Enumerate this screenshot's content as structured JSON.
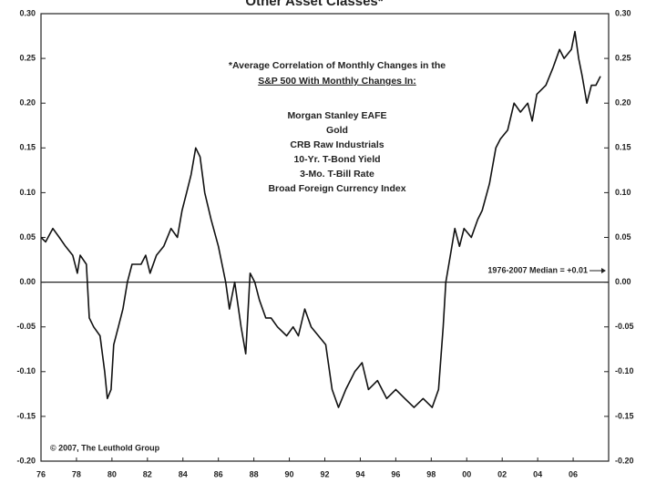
{
  "chart_data": {
    "type": "line",
    "title": "Other Asset Classes*",
    "annotations": {
      "note_lines": [
        "*Average Correlation of Monthly Changes in the",
        "S&P 500 With Monthly Changes In:"
      ],
      "items": [
        "Morgan Stanley EAFE",
        "Gold",
        "CRB Raw Industrials",
        "10-Yr. T-Bond Yield",
        "3-Mo. T-Bill Rate",
        "Broad Foreign Currency Index"
      ],
      "median": "1976-2007 Median = +0.01",
      "copyright": "© 2007, The Leuthold Group"
    },
    "x": [
      1976.0,
      1976.26,
      1976.67,
      1977.03,
      1977.38,
      1977.79,
      1978.05,
      1978.21,
      1978.56,
      1978.72,
      1978.97,
      1979.33,
      1979.59,
      1979.74,
      1979.95,
      1980.1,
      1980.36,
      1980.62,
      1980.87,
      1981.13,
      1981.64,
      1981.9,
      1982.15,
      1982.51,
      1982.92,
      1983.33,
      1983.69,
      1983.95,
      1984.21,
      1984.46,
      1984.72,
      1984.97,
      1985.23,
      1985.59,
      1986.0,
      1986.41,
      1986.62,
      1986.92,
      1987.28,
      1987.54,
      1987.79,
      1988.05,
      1988.31,
      1988.67,
      1988.97,
      1989.33,
      1989.85,
      1990.21,
      1990.51,
      1990.87,
      1991.23,
      1991.64,
      1992.05,
      1992.41,
      1992.77,
      1993.18,
      1993.69,
      1994.1,
      1994.46,
      1994.97,
      1995.49,
      1996.0,
      1996.51,
      1997.03,
      1997.54,
      1998.05,
      1998.41,
      1998.67,
      1998.82,
      1999.08,
      1999.33,
      1999.59,
      1999.85,
      2000.26,
      2000.62,
      2000.87,
      2001.28,
      2001.64,
      2001.9,
      2002.31,
      2002.67,
      2003.03,
      2003.44,
      2003.69,
      2003.95,
      2004.46,
      2004.87,
      2005.23,
      2005.49,
      2005.9,
      2006.1,
      2006.31,
      2006.51,
      2006.77,
      2007.03,
      2007.28,
      2007.54
    ],
    "series": [
      {
        "color": "#111111",
        "values": [
          0.05,
          0.045,
          0.06,
          0.05,
          0.04,
          0.03,
          0.01,
          0.03,
          0.02,
          -0.04,
          -0.05,
          -0.06,
          -0.1,
          -0.13,
          -0.12,
          -0.07,
          -0.05,
          -0.03,
          0.0,
          0.02,
          0.02,
          0.03,
          0.01,
          0.03,
          0.04,
          0.06,
          0.05,
          0.08,
          0.1,
          0.12,
          0.15,
          0.14,
          0.1,
          0.07,
          0.04,
          0.0,
          -0.03,
          0.0,
          -0.05,
          -0.08,
          0.01,
          0.0,
          -0.02,
          -0.04,
          -0.04,
          -0.05,
          -0.06,
          -0.05,
          -0.06,
          -0.03,
          -0.05,
          -0.06,
          -0.07,
          -0.12,
          -0.14,
          -0.12,
          -0.1,
          -0.09,
          -0.12,
          -0.11,
          -0.13,
          -0.12,
          -0.13,
          -0.14,
          -0.13,
          -0.14,
          -0.12,
          -0.05,
          0.0,
          0.03,
          0.06,
          0.04,
          0.06,
          0.05,
          0.07,
          0.08,
          0.11,
          0.15,
          0.16,
          0.17,
          0.2,
          0.19,
          0.2,
          0.18,
          0.21,
          0.22,
          0.24,
          0.26,
          0.25,
          0.26,
          0.28,
          0.25,
          0.23,
          0.2,
          0.22,
          0.22,
          0.23
        ]
      }
    ],
    "xlim": [
      1976,
      2008
    ],
    "xticks": [
      {
        "value": 1976,
        "label": "76"
      },
      {
        "value": 1978,
        "label": "78"
      },
      {
        "value": 1980,
        "label": "80"
      },
      {
        "value": 1982,
        "label": "82"
      },
      {
        "value": 1984,
        "label": "84"
      },
      {
        "value": 1986,
        "label": "86"
      },
      {
        "value": 1988,
        "label": "88"
      },
      {
        "value": 1990,
        "label": "90"
      },
      {
        "value": 1992,
        "label": "92"
      },
      {
        "value": 1994,
        "label": "94"
      },
      {
        "value": 1996,
        "label": "96"
      },
      {
        "value": 1998,
        "label": "98"
      },
      {
        "value": 2000,
        "label": "00"
      },
      {
        "value": 2002,
        "label": "02"
      },
      {
        "value": 2004,
        "label": "04"
      },
      {
        "value": 2006,
        "label": "06"
      }
    ],
    "ylim": [
      -0.2,
      0.3
    ],
    "yticks": [
      {
        "value": 0.3,
        "label": "0.30"
      },
      0.25,
      {
        "value": 0.2,
        "label": "0.20"
      },
      0.15,
      {
        "value": 0.1,
        "label": "0.10"
      },
      0.05,
      {
        "value": 0,
        "label": "0.00"
      },
      -0.05,
      {
        "value": -0.1,
        "label": "-0.10"
      },
      -0.15,
      {
        "value": -0.2,
        "label": "-0.20"
      }
    ]
  }
}
